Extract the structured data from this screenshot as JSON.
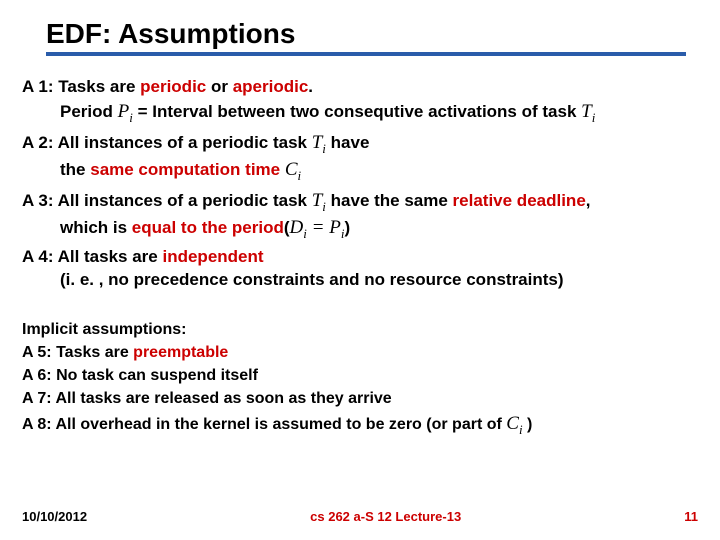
{
  "colors": {
    "accent_blue": "#2a5caa",
    "red": "#cc0000",
    "text": "#000000",
    "bg": "#ffffff"
  },
  "title": "EDF: Assumptions",
  "body": {
    "a1_l1_pre": "A 1: Tasks are ",
    "a1_l1_red1": "periodic",
    "a1_l1_mid": " or ",
    "a1_l1_red2": "aperiodic",
    "a1_l1_post": ".",
    "a1_l2_pre": "Period ",
    "a1_l2_sym_P": "P",
    "a1_l2_sub_i": "i",
    "a1_l2_post": " = Interval between two consequtive activations of task ",
    "a1_l2_sym_T": "T",
    "a1_l2_sub_i2": "i",
    "a2_l1_pre": "A 2: All instances of a periodic task ",
    "a2_l1_sym_T": "T",
    "a2_l1_sub_i": "i",
    "a2_l1_post": " have",
    "a2_l2_pre": "the ",
    "a2_l2_red": "same computation time",
    "a2_l2_post": " ",
    "a2_l2_sym_C": "C",
    "a2_l2_sub_i": "i",
    "a3_l1_pre": "A 3: All instances of a periodic task ",
    "a3_l1_sym_T": "T",
    "a3_l1_sub_i": "i",
    "a3_l1_mid": " have the same ",
    "a3_l1_red": "relative deadline",
    "a3_l1_post": ",",
    "a3_l2_pre": "which is ",
    "a3_l2_red": "equal to the period",
    "a3_l2_open": "(",
    "a3_l2_D": "D",
    "a3_l2_i1": "i",
    "a3_l2_eq": " = ",
    "a3_l2_P": "P",
    "a3_l2_i2": "i",
    "a3_l2_close": ")",
    "a4_l1_pre": "A 4: All tasks are ",
    "a4_l1_red": "independent",
    "a4_l2": "(i. e. , no precedence constraints and no resource constraints)"
  },
  "implicit": {
    "header": "Implicit assumptions:",
    "a5_pre": "A 5: Tasks are ",
    "a5_red": "preemptable",
    "a6": "A 6: No task can suspend itself",
    "a7": "A 7: All tasks are released as soon as they arrive",
    "a8_pre": "A 8: All overhead in the kernel is assumed to be zero (or part of ",
    "a8_C": "C",
    "a8_i": "i",
    "a8_post": " )"
  },
  "footer": {
    "date": "10/10/2012",
    "course": "cs 262 a-S 12 Lecture-13",
    "page": "11"
  }
}
